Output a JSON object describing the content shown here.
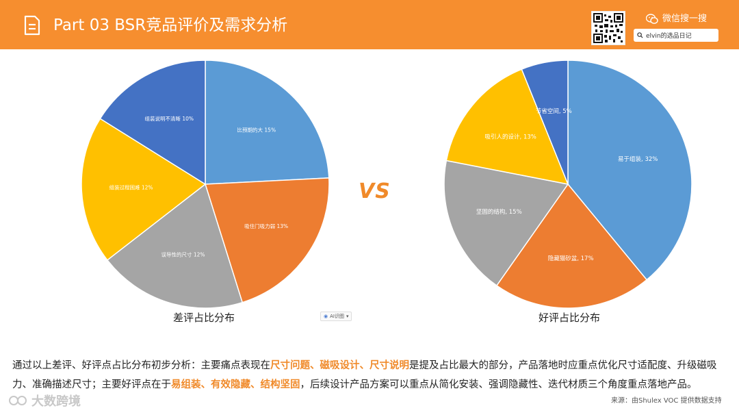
{
  "header": {
    "title": "Part 03  BSR竞品评价及需求分析",
    "wechat_label": "微信搜一搜",
    "search_value": "elvin的选品日记"
  },
  "colors": {
    "header_bg": "#f68e2f",
    "highlight": "#f08a2a"
  },
  "vs_label": "VS",
  "ai_badge": "AI识图",
  "chart_data": [
    {
      "type": "pie",
      "title": "差评占比分布",
      "slices": [
        {
          "label": "比预期的大",
          "value": 15,
          "display": "比预期的大 15%",
          "color": "#5b9bd5"
        },
        {
          "label": "吸住门吸力弱",
          "value": 13,
          "display": "吸住门吸力弱 13%",
          "color": "#ed7d31"
        },
        {
          "label": "误导性的尺寸",
          "value": 12,
          "display": "误导性的尺寸 12%",
          "color": "#a5a5a5"
        },
        {
          "label": "组装过程困难",
          "value": 12,
          "display": "组装过程困难 12%",
          "color": "#ffc000"
        },
        {
          "label": "组装说明不清晰",
          "value": 10,
          "display": "组装说明不清晰 10%",
          "color": "#4472c4"
        }
      ]
    },
    {
      "type": "pie",
      "title": "好评占比分布",
      "slices": [
        {
          "label": "易于组装",
          "value": 32,
          "display": "易于组装, 32%",
          "color": "#5b9bd5"
        },
        {
          "label": "隐藏猫砂盆",
          "value": 17,
          "display": "隐藏猫砂盆, 17%",
          "color": "#ed7d31"
        },
        {
          "label": "坚固的结构",
          "value": 15,
          "display": "坚固的结构, 15%",
          "color": "#a5a5a5"
        },
        {
          "label": "吸引人的设计",
          "value": 13,
          "display": "吸引人的设计, 13%",
          "color": "#ffc000"
        },
        {
          "label": "节省空间",
          "value": 5,
          "display": "节省空间, 5%",
          "color": "#4472c4"
        }
      ]
    }
  ],
  "analysis": {
    "p1": "通过以上差评、好评点占比分布初步分析：主要痛点表现在",
    "h1": "尺寸问题、磁吸设计、尺寸说明",
    "p2": "是提及占比最大的部分，产品落地时应重点优化尺寸适配度、升级磁吸力、准确描述尺寸；主要好评点在于",
    "h2": "易组装、有效隐藏、结构坚固",
    "p3": "，后续设计产品方案可以重点从简化安装、强调隐藏性、迭代材质三个角度重点落地产品。"
  },
  "source": "来源：由Shulex VOC 提供数据支持",
  "watermark": "大数跨境"
}
